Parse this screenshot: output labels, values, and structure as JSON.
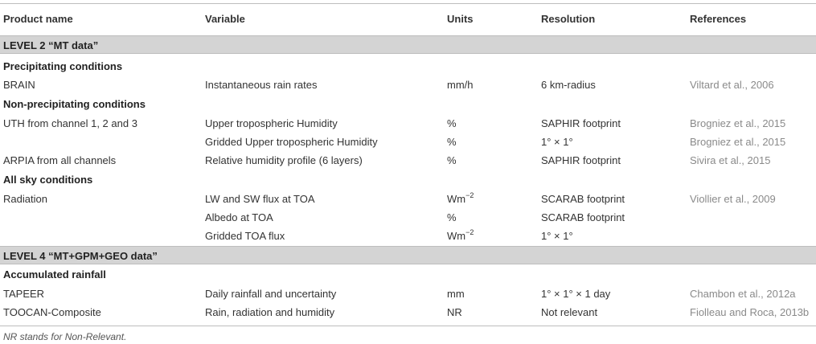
{
  "headers": [
    "Product name",
    "Variable",
    "Units",
    "Resolution",
    "References"
  ],
  "sections": [
    {
      "title": "LEVEL 2 “MT data”",
      "subsections": [
        {
          "title": "Precipitating conditions",
          "rows": [
            {
              "product": "BRAIN",
              "variable": "Instantaneous rain rates",
              "units": "mm/h",
              "units_sup": "",
              "resolution": "6 km-radius",
              "reference": "Viltard et al., 2006"
            }
          ]
        },
        {
          "title": "Non-precipitating conditions",
          "rows": [
            {
              "product": "UTH from channel 1, 2 and 3",
              "variable": "Upper tropospheric Humidity",
              "units": "%",
              "units_sup": "",
              "resolution": "SAPHIR footprint",
              "reference": "Brogniez et al., 2015"
            },
            {
              "product": "",
              "variable": "Gridded Upper tropospheric Humidity",
              "units": "%",
              "units_sup": "",
              "resolution": "1° × 1°",
              "reference": "Brogniez et al., 2015"
            },
            {
              "product": "ARPIA from all channels",
              "variable": "Relative humidity profile (6 layers)",
              "units": "%",
              "units_sup": "",
              "resolution": "SAPHIR footprint",
              "reference": "Sivira et al., 2015"
            }
          ]
        },
        {
          "title": "All sky conditions",
          "rows": [
            {
              "product": "Radiation",
              "variable": "LW and SW flux at TOA",
              "units": "Wm",
              "units_sup": "−2",
              "resolution": "SCARAB footprint",
              "reference": "Viollier et al., 2009"
            },
            {
              "product": "",
              "variable": "Albedo at TOA",
              "units": "%",
              "units_sup": "",
              "resolution": "SCARAB footprint",
              "reference": ""
            },
            {
              "product": "",
              "variable": "Gridded TOA flux",
              "units": "Wm",
              "units_sup": "−2",
              "resolution": "1° × 1°",
              "reference": ""
            }
          ]
        }
      ]
    },
    {
      "title": "LEVEL 4 “MT+GPM+GEO data”",
      "subsections": [
        {
          "title": "Accumulated rainfall",
          "rows": [
            {
              "product": "TAPEER",
              "variable": "Daily rainfall and uncertainty",
              "units": "mm",
              "units_sup": "",
              "resolution": "1° × 1° × 1 day",
              "reference": "Chambon et al., 2012a"
            },
            {
              "product": "TOOCAN-Composite",
              "variable": "Rain, radiation and humidity",
              "units": "NR",
              "units_sup": "",
              "resolution": "Not relevant",
              "reference": "Fiolleau and Roca, 2013b"
            }
          ]
        }
      ]
    }
  ],
  "footnote": "NR stands for Non-Relevant."
}
